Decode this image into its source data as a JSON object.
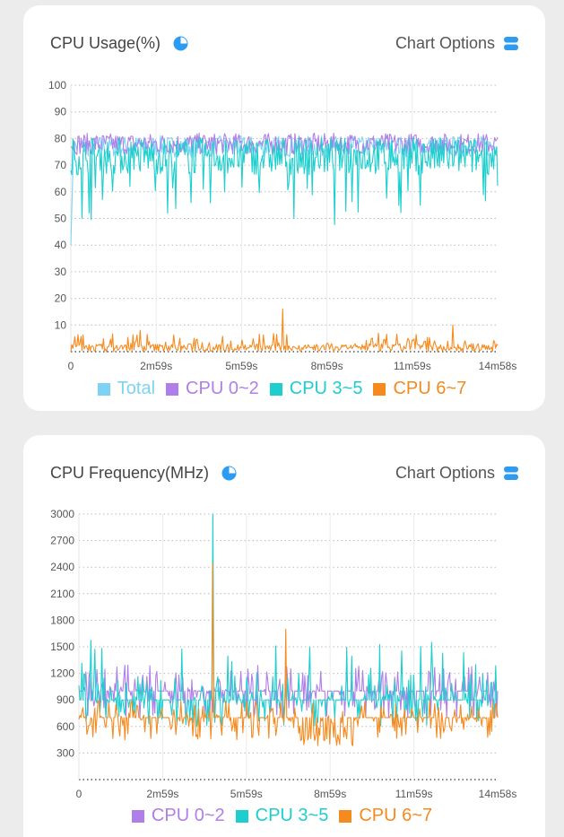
{
  "cards": [
    {
      "title": "CPU Usage(%)",
      "options_label": "Chart Options",
      "pie_icon": "pie-chart-icon",
      "options_icon": "stack-icon"
    },
    {
      "title": "CPU Frequency(MHz)",
      "options_label": "Chart Options",
      "pie_icon": "pie-chart-icon",
      "options_icon": "stack-icon"
    }
  ],
  "colors": {
    "total": "#7dd3f5",
    "cpu02": "#b07ee8",
    "cpu35": "#1ccfce",
    "cpu67": "#f58a1f",
    "icon": "#2c9cf3"
  },
  "chart_data": [
    {
      "type": "line",
      "title": "CPU Usage(%)",
      "x_ticks": [
        "0",
        "2m59s",
        "5m59s",
        "8m59s",
        "11m59s",
        "14m58s"
      ],
      "y_ticks": [
        10,
        20,
        30,
        40,
        50,
        60,
        70,
        80,
        90,
        100
      ],
      "ylim": [
        0,
        100
      ],
      "grid": "horizontal-dotted",
      "legend": [
        "Total",
        "CPU 0~2",
        "CPU 3~5",
        "CPU 6~7"
      ],
      "legend_position": "bottom",
      "series": [
        {
          "name": "Total",
          "approx_level": 77
        },
        {
          "name": "CPU 0~2",
          "approx_level": 78
        },
        {
          "name": "CPU 3~5",
          "approx_level": 72
        },
        {
          "name": "CPU 6~7",
          "approx_level": 3,
          "peak": 16
        }
      ]
    },
    {
      "type": "line",
      "title": "CPU Frequency(MHz)",
      "x_ticks": [
        "0",
        "2m59s",
        "5m59s",
        "8m59s",
        "11m59s",
        "14m58s"
      ],
      "y_ticks": [
        300,
        600,
        900,
        1200,
        1500,
        1800,
        2100,
        2400,
        2700,
        3000
      ],
      "ylim": [
        0,
        3000
      ],
      "grid": "horizontal-dotted",
      "legend": [
        "CPU 0~2",
        "CPU 3~5",
        "CPU 6~7"
      ],
      "legend_position": "bottom",
      "series": [
        {
          "name": "CPU 0~2",
          "approx_level": 1000
        },
        {
          "name": "CPU 3~5",
          "approx_level": 900,
          "peak": 3000
        },
        {
          "name": "CPU 6~7",
          "approx_level": 650,
          "peak": 2450
        }
      ]
    }
  ]
}
